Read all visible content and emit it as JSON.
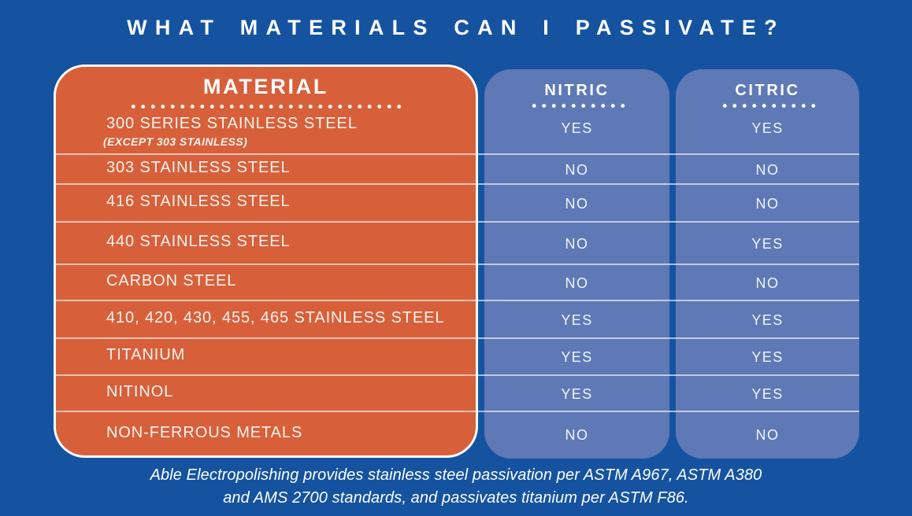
{
  "title": "WHAT MATERIALS CAN I PASSIVATE?",
  "chart_data": {
    "type": "table",
    "title": "WHAT MATERIALS CAN I PASSIVATE?",
    "columns": [
      "MATERIAL",
      "NITRIC",
      "CITRIC"
    ],
    "rows": [
      {
        "material": "300 SERIES STAINLESS STEEL",
        "material_note": "(EXCEPT 303 STAINLESS)",
        "nitric": "YES",
        "citric": "YES"
      },
      {
        "material": "303 STAINLESS STEEL",
        "nitric": "NO",
        "citric": "NO"
      },
      {
        "material": "416 STAINLESS STEEL",
        "nitric": "NO",
        "citric": "NO"
      },
      {
        "material": "440 STAINLESS STEEL",
        "nitric": "NO",
        "citric": "YES"
      },
      {
        "material": "CARBON STEEL",
        "nitric": "NO",
        "citric": "NO"
      },
      {
        "material": "410, 420, 430, 455, 465 STAINLESS STEEL",
        "nitric": "YES",
        "citric": "YES"
      },
      {
        "material": "TITANIUM",
        "nitric": "YES",
        "citric": "YES"
      },
      {
        "material": "NITINOL",
        "nitric": "YES",
        "citric": "YES"
      },
      {
        "material": "NON-FERROUS METALS",
        "nitric": "NO",
        "citric": "NO"
      }
    ]
  },
  "footer": {
    "line1": "Able Electropolishing provides stainless steel passivation per ASTM A967, ASTM A380",
    "line2": "and AMS 2700 standards, and passivates titanium per ASTM F86."
  },
  "colors": {
    "background": "#1553A0",
    "material_column": "#D7603B",
    "acid_column": "#5E79B6",
    "text": "#FFFFFF"
  }
}
